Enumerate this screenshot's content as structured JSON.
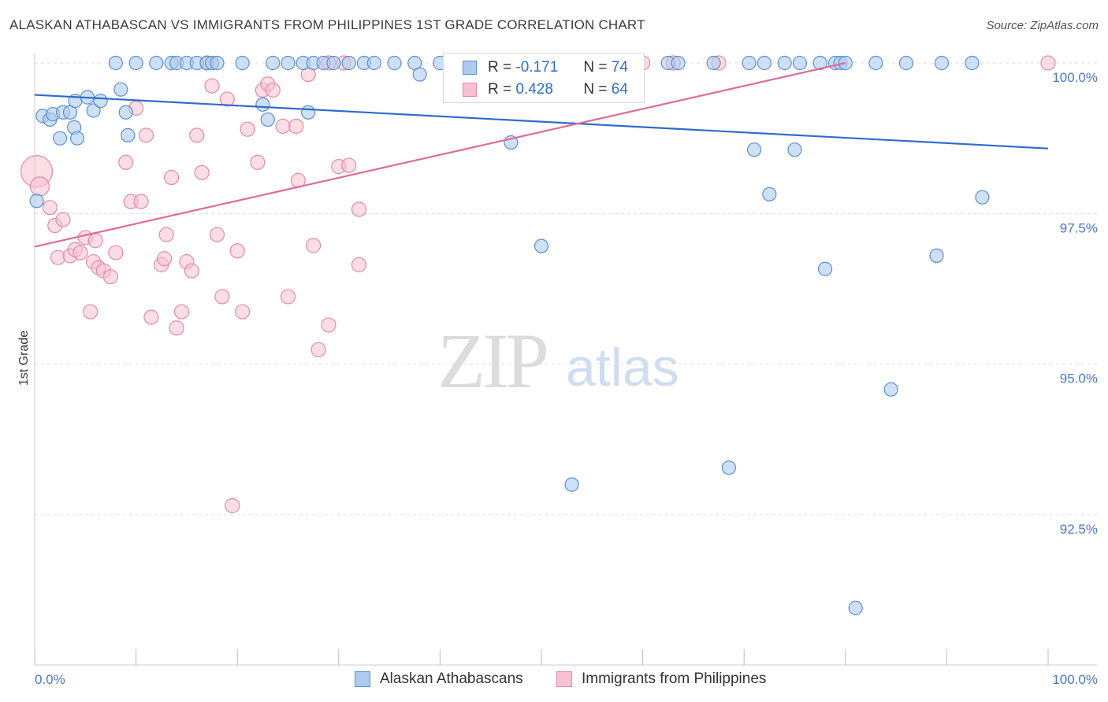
{
  "header": {
    "title": "ALASKAN ATHABASCAN VS IMMIGRANTS FROM PHILIPPINES 1ST GRADE CORRELATION CHART",
    "source": "Source: ZipAtlas.com"
  },
  "watermark": {
    "zip": "ZIP",
    "atlas": "atlas"
  },
  "legend": {
    "rows": [
      {
        "r_label": "R =",
        "r_value": "-0.171",
        "n_label": "N =",
        "n_value": "74"
      },
      {
        "r_label": "R =",
        "r_value": "0.428",
        "n_label": "N =",
        "n_value": "64"
      }
    ]
  },
  "bottom_legend": {
    "series1": "Alaskan Athabascans",
    "series2": "Immigrants from Philippines"
  },
  "colors": {
    "blue_fill": "#aecbef",
    "blue_stroke": "#5b8fd6",
    "blue_line": "#2f6ccd",
    "pink_fill": "#f7c1d1",
    "pink_stroke": "#e48aa6",
    "pink_line": "#e06b93",
    "grid": "#dddddd",
    "tick_text": "#4a78c8"
  },
  "chart_data": {
    "type": "scatter",
    "title": "ALASKAN ATHABASCAN VS IMMIGRANTS FROM PHILIPPINES 1ST GRADE CORRELATION CHART",
    "xlabel": "",
    "ylabel": "1st Grade",
    "xlim": [
      0,
      100
    ],
    "ylim": [
      90.0,
      100.3
    ],
    "y_ticks": [
      {
        "value": 100.0,
        "label": "100.0%"
      },
      {
        "value": 97.5,
        "label": "97.5%"
      },
      {
        "value": 95.0,
        "label": "95.0%"
      },
      {
        "value": 92.5,
        "label": "92.5%"
      }
    ],
    "x_tick_labels": {
      "min": "0.0%",
      "max": "100.0%"
    },
    "x_minor_ticks": [
      0,
      10,
      20,
      30,
      40,
      50,
      60,
      70,
      80,
      90,
      100
    ],
    "series": [
      {
        "name": "Alaskan Athabascans",
        "color": "blue",
        "r": -0.171,
        "n": 74,
        "trend": [
          [
            0,
            99.47
          ],
          [
            100,
            98.58
          ]
        ],
        "points": [
          [
            0.2,
            97.71
          ],
          [
            0.8,
            99.12
          ],
          [
            1.5,
            99.06
          ],
          [
            1.8,
            99.15
          ],
          [
            2.5,
            98.75
          ],
          [
            2.8,
            99.18
          ],
          [
            3.5,
            99.18
          ],
          [
            3.9,
            98.93
          ],
          [
            4.0,
            99.37
          ],
          [
            4.2,
            98.75
          ],
          [
            5.2,
            99.43
          ],
          [
            5.8,
            99.21
          ],
          [
            6.5,
            99.37
          ],
          [
            8.5,
            99.56
          ],
          [
            9.0,
            99.18
          ],
          [
            9.2,
            98.8
          ],
          [
            8.0,
            100.0
          ],
          [
            10.0,
            100.0
          ],
          [
            12.0,
            100.0
          ],
          [
            13.5,
            100.0
          ],
          [
            14.0,
            100.0
          ],
          [
            15.0,
            100.0
          ],
          [
            16.0,
            100.0
          ],
          [
            17.0,
            100.0
          ],
          [
            17.5,
            100.0
          ],
          [
            18.0,
            100.0
          ],
          [
            20.5,
            100.0
          ],
          [
            22.5,
            99.31
          ],
          [
            23.0,
            99.06
          ],
          [
            23.5,
            100.0
          ],
          [
            25.0,
            100.0
          ],
          [
            26.5,
            100.0
          ],
          [
            27.0,
            99.18
          ],
          [
            27.5,
            100.0
          ],
          [
            28.5,
            100.0
          ],
          [
            29.5,
            100.0
          ],
          [
            31.0,
            100.0
          ],
          [
            32.5,
            100.0
          ],
          [
            33.5,
            100.0
          ],
          [
            35.5,
            100.0
          ],
          [
            37.5,
            100.0
          ],
          [
            38.0,
            99.81
          ],
          [
            40.0,
            100.0
          ],
          [
            41.5,
            100.0
          ],
          [
            43.5,
            100.0
          ],
          [
            47.0,
            98.68
          ],
          [
            50.0,
            96.96
          ],
          [
            56.0,
            100.0
          ],
          [
            58.0,
            100.0
          ],
          [
            62.5,
            100.0
          ],
          [
            63.5,
            100.0
          ],
          [
            67.0,
            100.0
          ],
          [
            70.5,
            100.0
          ],
          [
            71.0,
            98.56
          ],
          [
            72.5,
            97.82
          ],
          [
            72.0,
            100.0
          ],
          [
            74.0,
            100.0
          ],
          [
            75.0,
            98.56
          ],
          [
            75.5,
            100.0
          ],
          [
            77.5,
            100.0
          ],
          [
            78.0,
            96.58
          ],
          [
            79.0,
            100.0
          ],
          [
            79.5,
            100.0
          ],
          [
            80.0,
            100.0
          ],
          [
            81.0,
            90.95
          ],
          [
            83.0,
            100.0
          ],
          [
            84.5,
            94.58
          ],
          [
            86.0,
            100.0
          ],
          [
            89.0,
            96.8
          ],
          [
            89.5,
            100.0
          ],
          [
            93.5,
            97.77
          ],
          [
            92.5,
            100.0
          ],
          [
            53.0,
            93.0
          ],
          [
            68.5,
            93.28
          ]
        ]
      },
      {
        "name": "Immigrants from Philippines",
        "color": "pink",
        "r": 0.428,
        "n": 64,
        "trend": [
          [
            0,
            96.95
          ],
          [
            80,
            100.0
          ]
        ],
        "points": [
          [
            0.2,
            98.2
          ],
          [
            0.5,
            97.95
          ],
          [
            1.5,
            97.6
          ],
          [
            2.0,
            97.3
          ],
          [
            2.3,
            96.77
          ],
          [
            2.8,
            97.4
          ],
          [
            3.5,
            96.8
          ],
          [
            4.0,
            96.9
          ],
          [
            4.5,
            96.85
          ],
          [
            5.0,
            97.1
          ],
          [
            5.5,
            95.87
          ],
          [
            5.8,
            96.7
          ],
          [
            6.0,
            97.05
          ],
          [
            6.3,
            96.6
          ],
          [
            6.8,
            96.55
          ],
          [
            7.5,
            96.45
          ],
          [
            8.0,
            96.85
          ],
          [
            9.0,
            98.35
          ],
          [
            9.5,
            97.7
          ],
          [
            10.0,
            99.25
          ],
          [
            10.5,
            97.7
          ],
          [
            11.0,
            98.8
          ],
          [
            11.5,
            95.78
          ],
          [
            12.5,
            96.65
          ],
          [
            12.8,
            96.75
          ],
          [
            13.0,
            97.15
          ],
          [
            13.5,
            98.1
          ],
          [
            14.0,
            95.6
          ],
          [
            14.5,
            95.87
          ],
          [
            15.0,
            96.7
          ],
          [
            15.5,
            96.55
          ],
          [
            16.0,
            98.8
          ],
          [
            16.5,
            98.18
          ],
          [
            17.5,
            99.62
          ],
          [
            18.0,
            97.15
          ],
          [
            18.5,
            96.12
          ],
          [
            19.0,
            99.4
          ],
          [
            19.5,
            92.65
          ],
          [
            20.0,
            96.88
          ],
          [
            20.5,
            95.87
          ],
          [
            21.0,
            98.9
          ],
          [
            22.0,
            98.35
          ],
          [
            22.5,
            99.55
          ],
          [
            23.0,
            99.65
          ],
          [
            23.5,
            99.55
          ],
          [
            24.5,
            98.95
          ],
          [
            25.0,
            96.12
          ],
          [
            25.8,
            98.95
          ],
          [
            26.0,
            98.05
          ],
          [
            27.0,
            99.81
          ],
          [
            27.5,
            96.97
          ],
          [
            28.0,
            95.24
          ],
          [
            29.0,
            95.65
          ],
          [
            30.0,
            98.28
          ],
          [
            31.0,
            98.3
          ],
          [
            32.0,
            97.57
          ],
          [
            32.0,
            96.65
          ],
          [
            17.0,
            100.0
          ],
          [
            29.0,
            100.0
          ],
          [
            30.5,
            100.0
          ],
          [
            60.0,
            100.0
          ],
          [
            63.0,
            100.0
          ],
          [
            67.5,
            100.0
          ],
          [
            100.0,
            100.0
          ]
        ]
      }
    ]
  }
}
